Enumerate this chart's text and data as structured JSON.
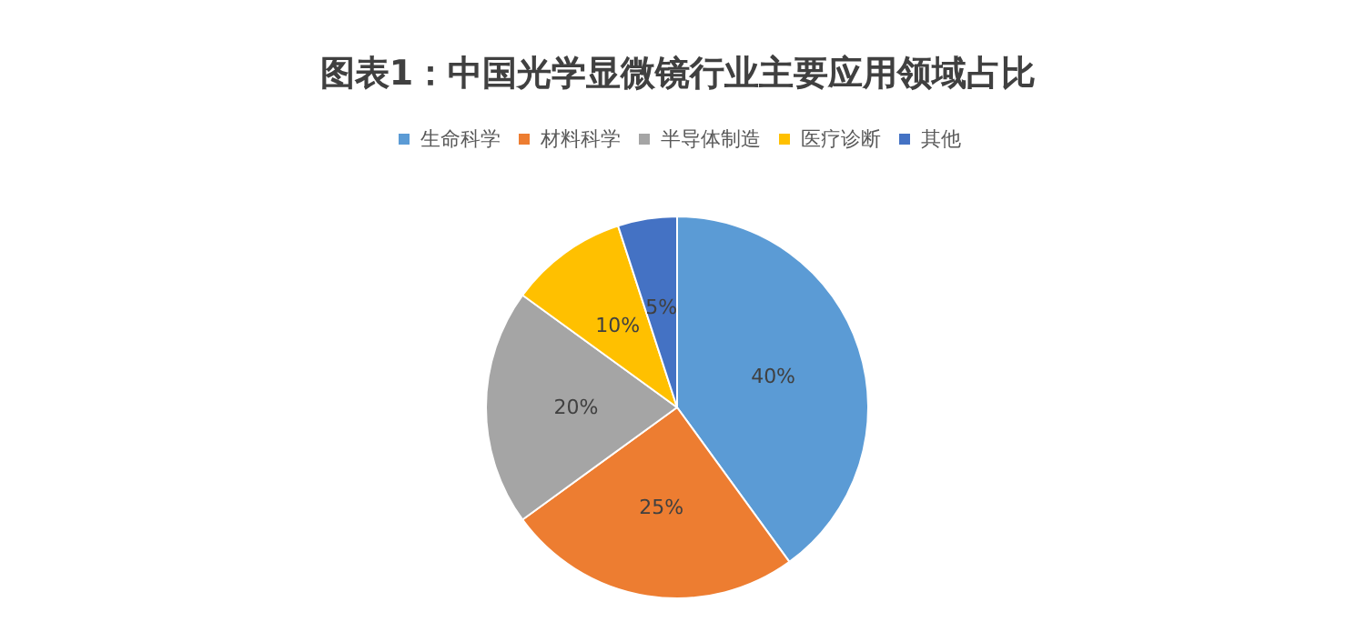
{
  "chart_data": {
    "type": "pie",
    "title": "图表1：中国光学显微镜行业主要应用领域占比",
    "categories": [
      "生命科学",
      "材料科学",
      "半导体制造",
      "医疗诊断",
      "其他"
    ],
    "values": [
      40,
      25,
      20,
      10,
      5
    ],
    "colors": [
      "#5b9bd5",
      "#ed7d31",
      "#a5a5a5",
      "#ffc000",
      "#4472c4"
    ],
    "value_labels": [
      "40%",
      "25%",
      "20%",
      "10%",
      "5%"
    ],
    "legend": "top"
  }
}
